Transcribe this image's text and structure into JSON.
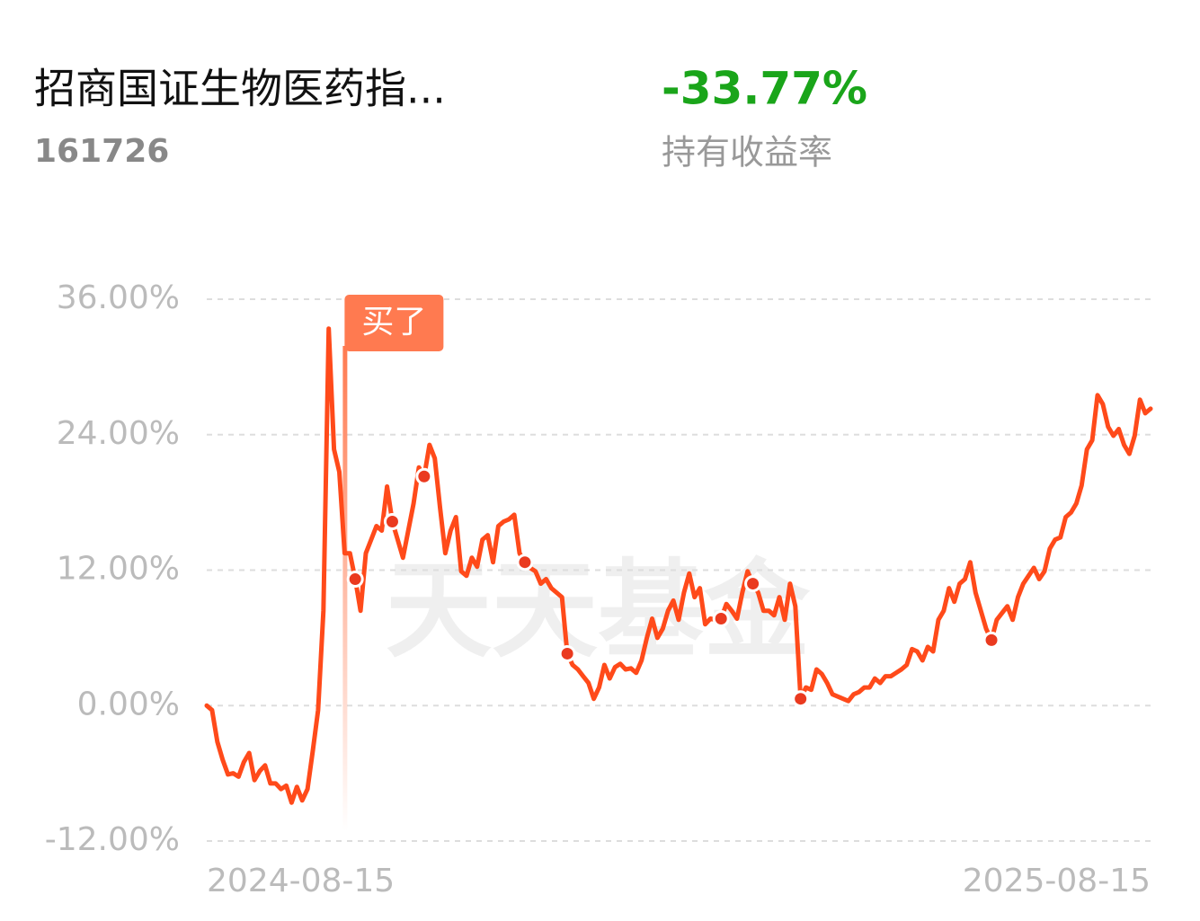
{
  "header": {
    "title": "招商国证生物医药指...",
    "code": "161726",
    "return": "-33.77%",
    "return_label": "持有收益率"
  },
  "chart_data": {
    "type": "line",
    "watermark": "天天基金",
    "color": "#ff4a1a",
    "dot_color": "#ea3a1f",
    "grid": true,
    "ylim": [
      -12,
      36
    ],
    "yticks": [
      {
        "value": 36,
        "label": "36.00%"
      },
      {
        "value": 24,
        "label": "24.00%"
      },
      {
        "value": 12,
        "label": "12.00%"
      },
      {
        "value": 0,
        "label": "0.00%"
      },
      {
        "value": -12,
        "label": "-12.00%"
      }
    ],
    "categories": [
      "2024-08-15",
      null,
      null,
      null,
      null,
      null,
      null,
      null,
      null,
      null,
      null,
      null,
      null,
      null,
      null,
      null,
      null,
      null,
      null,
      null,
      null,
      null,
      null,
      null,
      null,
      null,
      null,
      null,
      null,
      null,
      null,
      null,
      null,
      null,
      null,
      null,
      null,
      null,
      null,
      null,
      null,
      null,
      null,
      null,
      null,
      null,
      null,
      null,
      null,
      null,
      null,
      null,
      null,
      null,
      null,
      null,
      null,
      null,
      null,
      null,
      null,
      null,
      null,
      null,
      null,
      null,
      null,
      null,
      null,
      null,
      null,
      null,
      null,
      null,
      null,
      null,
      null,
      null,
      null,
      null,
      null,
      null,
      null,
      null,
      null,
      null,
      null,
      null,
      null,
      null,
      null,
      null,
      null,
      null,
      null,
      null,
      null,
      null,
      null,
      null,
      null,
      null,
      null,
      null,
      null,
      null,
      null,
      null,
      null,
      null,
      null,
      null,
      null,
      null,
      null,
      null,
      null,
      null,
      null,
      null,
      null,
      null,
      null,
      null,
      null,
      null,
      null,
      null,
      null,
      null,
      null,
      null,
      null,
      null,
      null,
      null,
      null,
      null,
      null,
      null,
      null,
      null,
      null,
      null,
      null,
      null,
      null,
      null,
      null,
      null,
      null,
      null,
      null,
      null,
      null,
      null,
      null,
      null,
      null,
      null,
      null,
      null,
      null,
      null,
      null,
      null,
      null,
      null,
      null,
      null,
      null,
      null,
      null,
      null,
      null,
      null,
      null,
      null,
      "2025-08-15"
    ],
    "values": [
      0,
      -0.4,
      -3.2,
      -4.8,
      -6.1,
      -6.0,
      -6.3,
      -5.0,
      -4.2,
      -6.6,
      -5.8,
      -5.3,
      -6.9,
      -6.9,
      -7.4,
      -7.1,
      -8.6,
      -7.2,
      -8.4,
      -7.4,
      -4.0,
      -0.4,
      8.4,
      33.4,
      22.7,
      20.7,
      13.5,
      13.5,
      11.2,
      8.4,
      13.5,
      14.7,
      15.9,
      15.5,
      19.4,
      16.3,
      14.7,
      13.1,
      15.5,
      17.9,
      21.1,
      20.3,
      23.1,
      21.9,
      17.5,
      13.5,
      15.5,
      16.7,
      11.9,
      11.5,
      13.1,
      12.3,
      14.7,
      15.1,
      12.7,
      15.9,
      16.3,
      16.5,
      16.9,
      13.5,
      12.7,
      12.2,
      11.9,
      10.8,
      11.2,
      10.4,
      10.0,
      9.6,
      4.6,
      3.6,
      3.2,
      2.6,
      2.0,
      0.6,
      1.6,
      3.6,
      2.4,
      3.4,
      3.7,
      3.2,
      3.3,
      2.9,
      4.0,
      6.0,
      7.7,
      6.0,
      6.8,
      8.4,
      9.3,
      7.6,
      10.0,
      11.7,
      9.6,
      10.4,
      7.2,
      7.7,
      7.6,
      7.7,
      9.0,
      8.4,
      7.7,
      10.0,
      11.9,
      10.8,
      10.0,
      8.4,
      8.4,
      8.0,
      9.6,
      7.6,
      10.8,
      8.8,
      0.6,
      1.6,
      1.4,
      3.2,
      2.8,
      2.0,
      1.0,
      0.8,
      0.6,
      0.4,
      1.0,
      1.2,
      1.6,
      1.6,
      2.4,
      2.0,
      2.6,
      2.6,
      2.9,
      3.2,
      3.6,
      5.0,
      4.8,
      4.0,
      5.2,
      4.8,
      7.6,
      8.4,
      10.4,
      9.2,
      10.8,
      11.2,
      12.7,
      10.0,
      8.4,
      6.8,
      5.8,
      7.6,
      8.2,
      8.8,
      7.6,
      9.6,
      10.8,
      11.5,
      12.2,
      11.2,
      11.9,
      13.9,
      14.7,
      14.9,
      16.7,
      17.1,
      17.9,
      19.5,
      22.7,
      23.5,
      27.5,
      26.7,
      24.7,
      23.9,
      24.5,
      23.1,
      22.3,
      23.9,
      27.1,
      25.9,
      26.3
    ],
    "trade_points": [
      28,
      35,
      41,
      60,
      68,
      97,
      103,
      112,
      148
    ],
    "annotation": {
      "text": "买了",
      "index": 26
    }
  }
}
